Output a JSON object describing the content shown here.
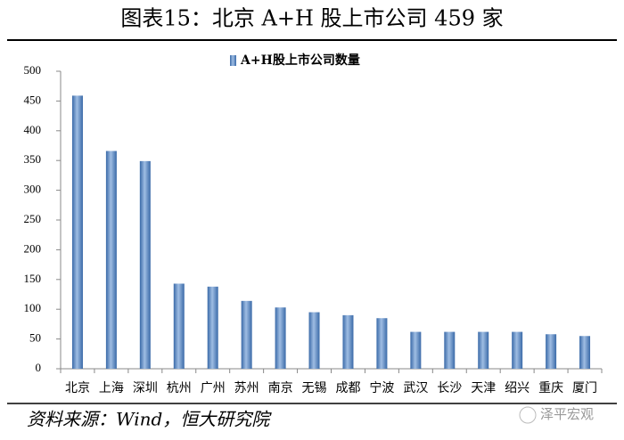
{
  "chart_data": {
    "type": "bar",
    "title": "图表15：北京 A+H 股上市公司 459 家",
    "categories": [
      "北京",
      "上海",
      "深圳",
      "杭州",
      "广州",
      "苏州",
      "南京",
      "无锡",
      "成都",
      "宁波",
      "武汉",
      "长沙",
      "天津",
      "绍兴",
      "重庆",
      "厦门"
    ],
    "series": [
      {
        "name": "A+H股上市公司数量",
        "color": "#4f81bd",
        "values": [
          459,
          366,
          349,
          143,
          138,
          114,
          103,
          95,
          90,
          85,
          62,
          62,
          62,
          62,
          58,
          55
        ]
      }
    ],
    "ylim": [
      0,
      500
    ],
    "yticks": [
      0,
      50,
      100,
      150,
      200,
      250,
      300,
      350,
      400,
      450,
      500
    ],
    "source": "资料来源：Wind，恒大研究院",
    "watermark": "泽平宏观"
  }
}
